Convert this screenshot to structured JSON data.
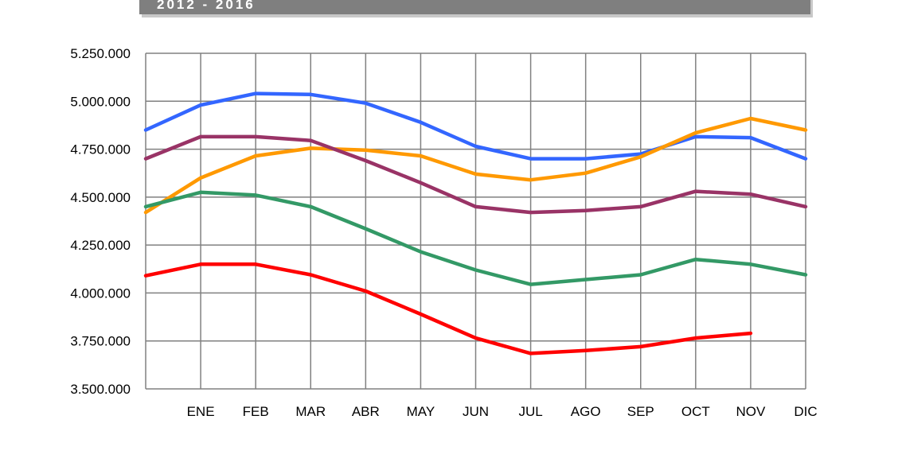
{
  "header": {
    "title": "2012 - 2016"
  },
  "chart_data": {
    "type": "line",
    "title": "2012 - 2016",
    "xlabel": "",
    "ylabel": "",
    "categories": [
      "",
      "ENE",
      "FEB",
      "MAR",
      "ABR",
      "MAY",
      "JUN",
      "JUL",
      "AGO",
      "SEP",
      "OCT",
      "NOV",
      "DIC"
    ],
    "ylim": [
      3500000,
      5250000
    ],
    "yticks": [
      3500000,
      3750000,
      4000000,
      4250000,
      4500000,
      4750000,
      5000000,
      5250000
    ],
    "ytick_labels": [
      "3.500.000",
      "3.750.000",
      "4.000.000",
      "4.250.000",
      "4.500.000",
      "4.750.000",
      "5.000.000",
      "5.250.000"
    ],
    "grid": true,
    "series": [
      {
        "color": "#3366ff",
        "values": [
          4850000,
          4980000,
          5040000,
          5035000,
          4990000,
          4890000,
          4765000,
          4700000,
          4700000,
          4725000,
          4815000,
          4810000,
          4700000
        ]
      },
      {
        "color": "#ff9900",
        "values": [
          4420000,
          4600000,
          4715000,
          4755000,
          4745000,
          4715000,
          4620000,
          4590000,
          4625000,
          4710000,
          4835000,
          4910000,
          4850000
        ]
      },
      {
        "color": "#993366",
        "values": [
          4700000,
          4815000,
          4815000,
          4795000,
          4690000,
          4575000,
          4450000,
          4420000,
          4430000,
          4450000,
          4530000,
          4515000,
          4450000
        ]
      },
      {
        "color": "#339966",
        "values": [
          4450000,
          4525000,
          4510000,
          4450000,
          4335000,
          4215000,
          4120000,
          4045000,
          4070000,
          4095000,
          4175000,
          4150000,
          4095000
        ]
      },
      {
        "color": "#ff0000",
        "values": [
          4090000,
          4150000,
          4150000,
          4095000,
          4010000,
          3890000,
          3765000,
          3685000,
          3700000,
          3720000,
          3765000,
          3790000,
          null
        ]
      }
    ]
  }
}
